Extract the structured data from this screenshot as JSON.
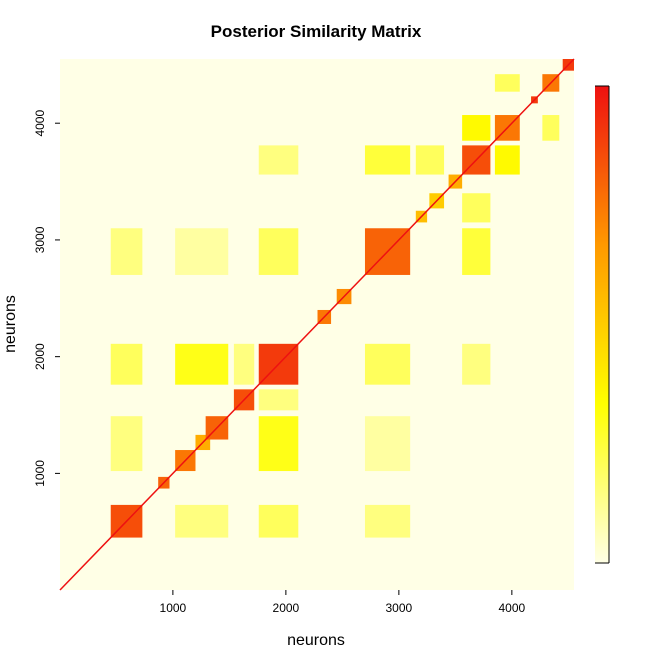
{
  "chart_data": {
    "type": "heatmap",
    "title": "Posterior Similarity Matrix",
    "xlabel": "neurons",
    "ylabel": "neurons",
    "xlim": [
      1,
      4550
    ],
    "ylim": [
      1,
      4550
    ],
    "x_ticks": [
      1000,
      2000,
      3000,
      4000
    ],
    "y_ticks": [
      1000,
      2000,
      3000,
      4000
    ],
    "value_range": [
      0,
      1
    ],
    "colorbar": {
      "colors": [
        "#ffffe6",
        "#ffff00",
        "#ff9900",
        "#ee1111"
      ],
      "labels": []
    },
    "grid": false,
    "legend": "right",
    "diagonal_blocks": [
      {
        "start": 450,
        "end": 730,
        "value": 0.85
      },
      {
        "start": 870,
        "end": 970,
        "value": 0.8
      },
      {
        "start": 1020,
        "end": 1200,
        "value": 0.75
      },
      {
        "start": 1200,
        "end": 1330,
        "value": 0.6
      },
      {
        "start": 1290,
        "end": 1490,
        "value": 0.8
      },
      {
        "start": 1540,
        "end": 1720,
        "value": 0.85
      },
      {
        "start": 1760,
        "end": 2110,
        "value": 0.9
      },
      {
        "start": 2280,
        "end": 2400,
        "value": 0.75
      },
      {
        "start": 2450,
        "end": 2580,
        "value": 0.7
      },
      {
        "start": 2700,
        "end": 3100,
        "value": 0.8
      },
      {
        "start": 3150,
        "end": 3250,
        "value": 0.55
      },
      {
        "start": 3270,
        "end": 3400,
        "value": 0.5
      },
      {
        "start": 3440,
        "end": 3560,
        "value": 0.6
      },
      {
        "start": 3560,
        "end": 3810,
        "value": 0.85
      },
      {
        "start": 3850,
        "end": 4070,
        "value": 0.75
      },
      {
        "start": 4170,
        "end": 4230,
        "value": 0.9
      },
      {
        "start": 4270,
        "end": 4420,
        "value": 0.75
      },
      {
        "start": 4450,
        "end": 4550,
        "value": 0.9
      }
    ],
    "offdiagonal_blocks": [
      {
        "a": [
          450,
          730
        ],
        "b": [
          1020,
          1490
        ],
        "value": 0.15
      },
      {
        "a": [
          450,
          730
        ],
        "b": [
          1760,
          2110
        ],
        "value": 0.2
      },
      {
        "a": [
          450,
          730
        ],
        "b": [
          2700,
          3100
        ],
        "value": 0.15
      },
      {
        "a": [
          1020,
          1490
        ],
        "b": [
          1760,
          2110
        ],
        "value": 0.3
      },
      {
        "a": [
          1020,
          1490
        ],
        "b": [
          2700,
          3100
        ],
        "value": 0.1
      },
      {
        "a": [
          1760,
          2110
        ],
        "b": [
          2700,
          3100
        ],
        "value": 0.2
      },
      {
        "a": [
          1760,
          2110
        ],
        "b": [
          3560,
          3810
        ],
        "value": 0.15
      },
      {
        "a": [
          2700,
          3100
        ],
        "b": [
          3560,
          3810
        ],
        "value": 0.25
      },
      {
        "a": [
          3560,
          3810
        ],
        "b": [
          3850,
          4070
        ],
        "value": 0.35
      },
      {
        "a": [
          3850,
          4070
        ],
        "b": [
          4270,
          4420
        ],
        "value": 0.2
      },
      {
        "a": [
          1540,
          1720
        ],
        "b": [
          1760,
          2110
        ],
        "value": 0.15
      },
      {
        "a": [
          3150,
          3400
        ],
        "b": [
          3560,
          3810
        ],
        "value": 0.2
      }
    ]
  }
}
